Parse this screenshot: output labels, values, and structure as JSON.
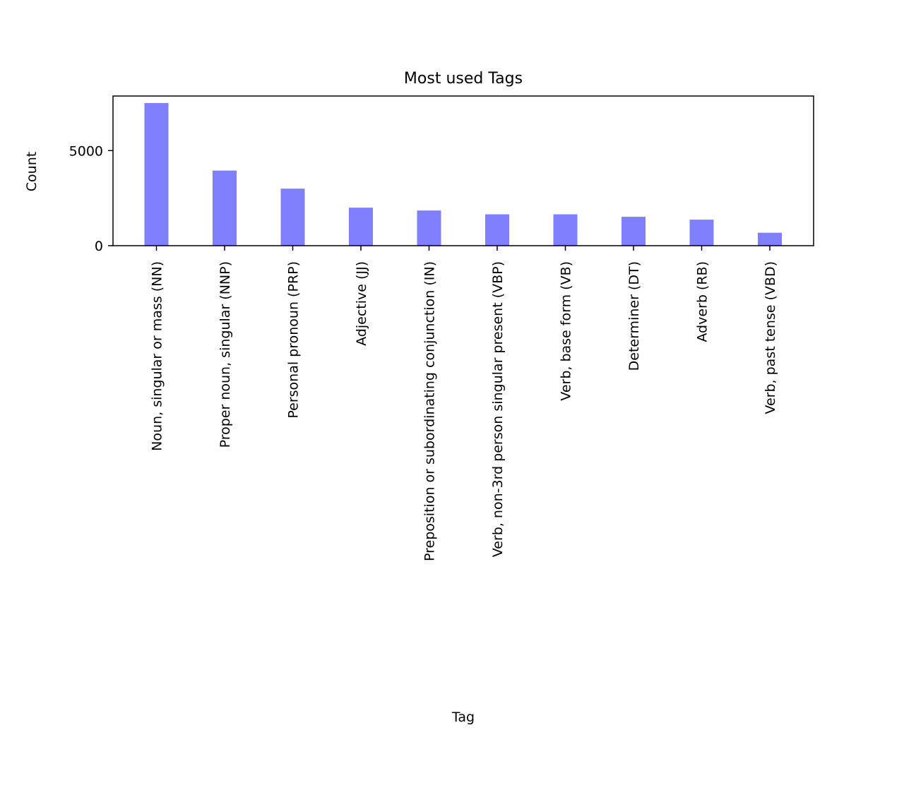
{
  "chart_data": {
    "type": "bar",
    "title": "Most used Tags",
    "xlabel": "Tag",
    "ylabel": "Count",
    "ylim": [
      0,
      7870
    ],
    "yticks": [
      0,
      5000
    ],
    "grid": false,
    "bar_color": "#8080ff",
    "categories": [
      "Noun, singular or mass (NN)",
      "Proper noun, singular (NNP)",
      "Personal pronoun (PRP)",
      "Adjective (JJ)",
      "Preposition or subordinating conjunction (IN)",
      "Verb, non-3rd person singular present (VBP)",
      "Verb, base form (VB)",
      "Determiner (DT)",
      "Adverb (RB)",
      "Verb, past tense (VBD)"
    ],
    "values": [
      7500,
      3950,
      3000,
      2000,
      1850,
      1650,
      1650,
      1520,
      1370,
      680
    ]
  }
}
